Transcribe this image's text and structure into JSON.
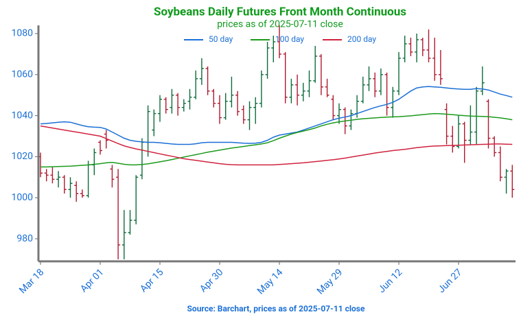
{
  "chart_data": {
    "type": "ohlc",
    "title": "Soybeans Daily Futures Front Month Continuous",
    "subtitle": "prices as of 2025-07-11 close",
    "source": "Source: Barchart, prices as of 2025-07-11 close",
    "categories": [
      "Mar 18",
      null,
      null,
      null,
      null,
      null,
      null,
      null,
      null,
      null,
      "Apr 01",
      null,
      null,
      null,
      null,
      null,
      null,
      null,
      null,
      null,
      "Apr 15",
      null,
      null,
      null,
      null,
      null,
      null,
      null,
      null,
      null,
      "Apr 30",
      null,
      null,
      null,
      null,
      null,
      null,
      null,
      null,
      null,
      "May 14",
      null,
      null,
      null,
      null,
      null,
      null,
      null,
      null,
      null,
      "May 29",
      null,
      null,
      null,
      null,
      null,
      null,
      null,
      null,
      null,
      "Jun 12",
      null,
      null,
      null,
      null,
      null,
      null,
      null,
      null,
      null,
      "Jun 27",
      null,
      null,
      null,
      null,
      null,
      null,
      null,
      null,
      null
    ],
    "open": [
      1020,
      1012,
      1011,
      1009,
      1010,
      1004,
      1006,
      1002,
      1001,
      1016,
      1027,
      1031,
      1014,
      1010,
      977,
      983,
      989,
      1011,
      1027,
      1033,
      1041,
      1048,
      1044,
      1050,
      1044,
      1047,
      1049,
      1058,
      1063,
      1052,
      1046,
      1039,
      1047,
      1050,
      1043,
      1038,
      1044,
      1046,
      1060,
      1073,
      1076,
      1070,
      1049,
      1055,
      1050,
      1052,
      1057,
      1069,
      1054,
      1048,
      1040,
      1043,
      1035,
      1041,
      1047,
      1055,
      1058,
      1052,
      1060,
      1044,
      1052,
      1068,
      1075,
      1071,
      1077,
      1072,
      1068,
      1060,
      1043,
      1030,
      1025,
      1036,
      1028,
      1032,
      1052,
      1047,
      1029,
      1022,
      1010,
      1013
    ],
    "high": [
      1022,
      1014,
      1015,
      1013,
      1011,
      1010,
      1008,
      1004,
      1018,
      1024,
      1028,
      1033,
      1016,
      1014,
      994,
      994,
      1011,
      1029,
      1045,
      1043,
      1050,
      1049,
      1053,
      1051,
      1048,
      1053,
      1062,
      1068,
      1064,
      1053,
      1050,
      1051,
      1059,
      1052,
      1045,
      1047,
      1049,
      1062,
      1076,
      1079,
      1084,
      1071,
      1058,
      1060,
      1056,
      1062,
      1074,
      1070,
      1058,
      1050,
      1046,
      1044,
      1043,
      1050,
      1059,
      1064,
      1061,
      1063,
      1061,
      1054,
      1071,
      1079,
      1078,
      1080,
      1078,
      1082,
      1078,
      1072,
      1046,
      1035,
      1040,
      1037,
      1045,
      1054,
      1064,
      1048,
      1030,
      1025,
      1014,
      1016
    ],
    "low": [
      1010,
      1008,
      1007,
      1005,
      1002,
      1000,
      998,
      1000,
      1000,
      1011,
      1021,
      1024,
      1005,
      970,
      970,
      982,
      987,
      1009,
      1020,
      1030,
      1037,
      1041,
      1041,
      1040,
      1042,
      1043,
      1048,
      1055,
      1050,
      1044,
      1036,
      1038,
      1044,
      1040,
      1036,
      1033,
      1036,
      1044,
      1058,
      1066,
      1068,
      1046,
      1046,
      1045,
      1047,
      1049,
      1056,
      1050,
      1049,
      1038,
      1036,
      1031,
      1033,
      1039,
      1046,
      1052,
      1049,
      1050,
      1040,
      1039,
      1050,
      1066,
      1069,
      1066,
      1069,
      1066,
      1057,
      1055,
      1026,
      1022,
      1024,
      1017,
      1026,
      1026,
      1050,
      1024,
      1020,
      1008,
      1002,
      1000
    ],
    "close": [
      1012,
      1011,
      1009,
      1010,
      1004,
      1007,
      1002,
      1001,
      1016,
      1022,
      1023,
      1028,
      1009,
      977,
      983,
      989,
      1010,
      1027,
      1042,
      1041,
      1048,
      1043,
      1050,
      1044,
      1046,
      1049,
      1058,
      1063,
      1052,
      1046,
      1039,
      1047,
      1050,
      1042,
      1038,
      1044,
      1046,
      1060,
      1073,
      1076,
      1070,
      1049,
      1055,
      1050,
      1052,
      1057,
      1069,
      1054,
      1050,
      1040,
      1043,
      1035,
      1041,
      1047,
      1055,
      1058,
      1052,
      1060,
      1044,
      1052,
      1068,
      1075,
      1071,
      1077,
      1072,
      1068,
      1060,
      1058,
      1030,
      1025,
      1036,
      1028,
      1032,
      1052,
      1056,
      1029,
      1022,
      1010,
      1013,
      1004
    ],
    "up_color": "#0b6b3a",
    "down_color": "#b0182e",
    "series": [
      {
        "name": "50 day",
        "color": "#1a6fd6",
        "values": [
          1036,
          1036.2,
          1036.5,
          1036.8,
          1037,
          1036.8,
          1036,
          1035.2,
          1034.6,
          1034.4,
          1034.3,
          1033.5,
          1032,
          1030.5,
          1029,
          1028,
          1027.5,
          1027.2,
          1027,
          1027,
          1026.8,
          1026.5,
          1026.2,
          1026,
          1026,
          1026,
          1026.3,
          1026.8,
          1027,
          1027,
          1027,
          1027,
          1027,
          1026.8,
          1026.6,
          1026.5,
          1026.6,
          1027,
          1028,
          1029.5,
          1030.5,
          1031,
          1031.5,
          1032,
          1033,
          1034,
          1035,
          1036,
          1037,
          1038,
          1038.8,
          1039.3,
          1040,
          1041,
          1042,
          1043,
          1044,
          1044.8,
          1045.5,
          1046.5,
          1048,
          1050,
          1052,
          1053.5,
          1054,
          1054.2,
          1054,
          1053.8,
          1053.5,
          1053.2,
          1053,
          1052.8,
          1052.8,
          1053.2,
          1053,
          1052.5,
          1051.5,
          1050.5,
          1049.8,
          1049
        ]
      },
      {
        "name": "100 day",
        "color": "#1a9a1a",
        "values": [
          1015,
          1015,
          1015.1,
          1015.2,
          1015.3,
          1015.4,
          1015.6,
          1015.8,
          1016,
          1016.3,
          1016.6,
          1017,
          1017.2,
          1016.8,
          1016.3,
          1016,
          1016,
          1016.2,
          1016.5,
          1017,
          1017.5,
          1018,
          1018.6,
          1019.2,
          1019.8,
          1020.4,
          1021,
          1021.6,
          1022.2,
          1022.7,
          1023.2,
          1023.7,
          1024.2,
          1024.6,
          1025,
          1025.4,
          1025.8,
          1026.2,
          1026.8,
          1027.8,
          1029,
          1030,
          1031,
          1031.8,
          1032.5,
          1033.2,
          1034,
          1035,
          1035.8,
          1036.5,
          1037,
          1037.4,
          1037.8,
          1038.2,
          1038.5,
          1038.7,
          1038.9,
          1039.1,
          1039.3,
          1039.4,
          1039.5,
          1039.7,
          1039.9,
          1040.2,
          1040.5,
          1040.8,
          1041,
          1040.9,
          1040.7,
          1040.5,
          1040.2,
          1040,
          1039.8,
          1039.7,
          1039.6,
          1039.5,
          1039.2,
          1038.9,
          1038.5,
          1038
        ]
      },
      {
        "name": "200 day",
        "color": "#d0223e",
        "values": [
          1035,
          1034.5,
          1034,
          1033.5,
          1033,
          1032.5,
          1032,
          1031.5,
          1031,
          1030.5,
          1030,
          1028.8,
          1027.6,
          1026.4,
          1025.3,
          1024.5,
          1023.8,
          1023.2,
          1022.6,
          1022,
          1021.4,
          1020.8,
          1020.2,
          1019.6,
          1019,
          1018.6,
          1018.2,
          1017.8,
          1017.4,
          1017,
          1016.6,
          1016.3,
          1016.1,
          1016,
          1016,
          1016,
          1016,
          1016,
          1016,
          1016,
          1016.2,
          1016.4,
          1016.6,
          1016.8,
          1017,
          1017.3,
          1017.6,
          1017.9,
          1018.2,
          1018.5,
          1018.9,
          1019.3,
          1019.8,
          1020.3,
          1020.8,
          1021.3,
          1021.8,
          1022.2,
          1022.6,
          1023,
          1023.3,
          1023.6,
          1024,
          1024.4,
          1024.7,
          1025,
          1025.2,
          1025.3,
          1025.4,
          1025.5,
          1025.6,
          1025.7,
          1025.8,
          1025.9,
          1026,
          1026.1,
          1026.2,
          1026.2,
          1026.1,
          1026
        ]
      }
    ],
    "ylim": [
      969,
      1084
    ],
    "yticks": [
      980,
      1000,
      1020,
      1040,
      1060,
      1080
    ],
    "legend": "top",
    "title_color": "#0f9a1c",
    "tick_color": "#1a6fd6"
  }
}
